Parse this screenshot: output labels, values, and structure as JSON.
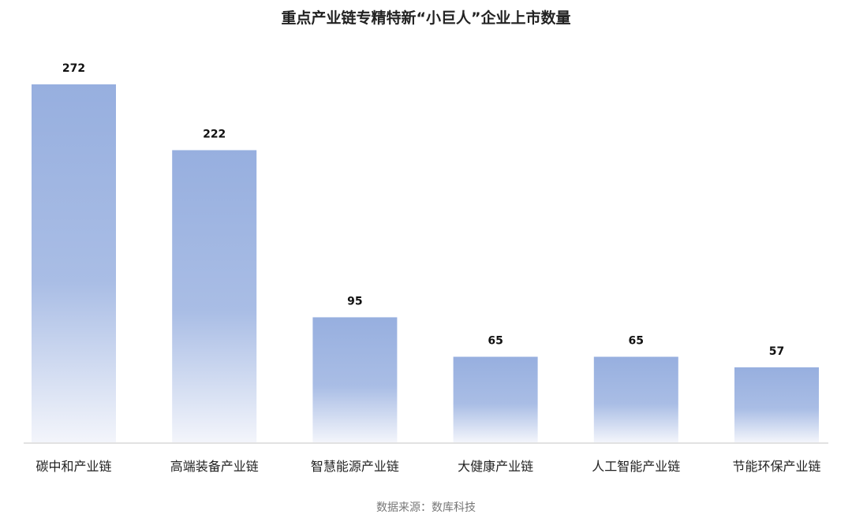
{
  "chart_data": {
    "type": "bar",
    "title": "重点产业链专精特新“小巨人”企业上市数量",
    "categories": [
      "碳中和产业链",
      "高端装备产业链",
      "智慧能源产业链",
      "大健康产业链",
      "人工智能产业链",
      "节能环保产业链"
    ],
    "values": [
      272,
      222,
      95,
      65,
      65,
      57
    ],
    "data_labels": [
      "272",
      "222",
      "95",
      "65",
      "65",
      "57"
    ],
    "xlabel": "",
    "ylabel": "",
    "ylim": [
      0,
      272
    ],
    "grid": false,
    "legend": "none",
    "colors": {
      "bar_top": "#97afdf",
      "bar_bottom": "#f3f5fb",
      "axis": "#d9d9d9"
    }
  },
  "source": "数据来源：数库科技"
}
